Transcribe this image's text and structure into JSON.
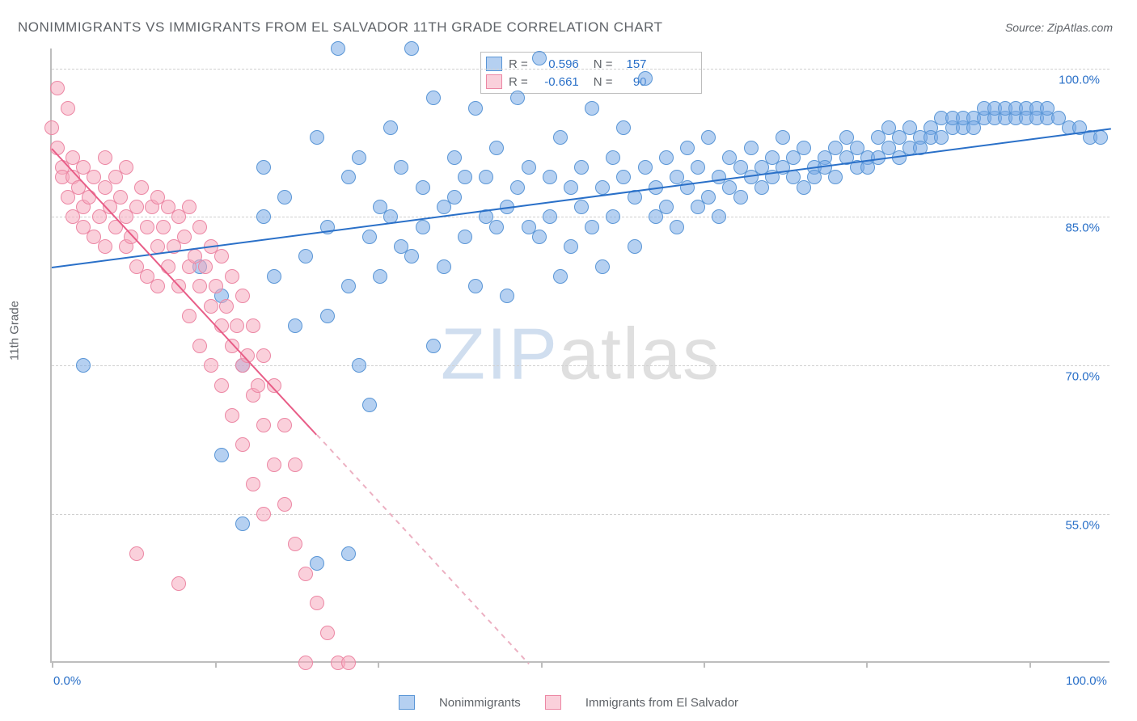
{
  "title": "NONIMMIGRANTS VS IMMIGRANTS FROM EL SALVADOR 11TH GRADE CORRELATION CHART",
  "source_label": "Source: ZipAtlas.com",
  "ylabel": "11th Grade",
  "watermark_a": "ZIP",
  "watermark_b": "atlas",
  "background_color": "#ffffff",
  "grid_color": "#d0d0d0",
  "axis_color": "#bdbdbd",
  "text_color": "#5f6368",
  "tick_label_color": "#2a70c8",
  "chart": {
    "type": "scatter",
    "xlim": [
      0,
      100
    ],
    "ylim": [
      40,
      102
    ],
    "x_ticks": [
      0,
      15.4,
      30.8,
      46.2,
      61.5,
      76.9,
      92.3
    ],
    "x_tick_labels": {
      "0": "0.0%",
      "100": "100.0%"
    },
    "y_gridlines": [
      55,
      70,
      85,
      100
    ],
    "y_tick_labels": {
      "55": "55.0%",
      "70": "70.0%",
      "85": "85.0%",
      "100": "100.0%"
    },
    "series": [
      {
        "name": "Nonimmigrants",
        "color_fill": "rgba(120,170,230,0.55)",
        "color_stroke": "#5a96d6",
        "R": "0.596",
        "N": "157",
        "trend": {
          "x1": 0,
          "y1": 80,
          "x2": 100,
          "y2": 94,
          "color": "#2a70c8",
          "dash_after_x": null
        },
        "marker_radius": 9,
        "points": [
          [
            3,
            70
          ],
          [
            14,
            80
          ],
          [
            16,
            77
          ],
          [
            18,
            70
          ],
          [
            16,
            61
          ],
          [
            20,
            85
          ],
          [
            20,
            90
          ],
          [
            21,
            79
          ],
          [
            22,
            87
          ],
          [
            23,
            74
          ],
          [
            24,
            81
          ],
          [
            25,
            93
          ],
          [
            26,
            84
          ],
          [
            25,
            50
          ],
          [
            26,
            75
          ],
          [
            27,
            102
          ],
          [
            28,
            78
          ],
          [
            28,
            89
          ],
          [
            29,
            91
          ],
          [
            29,
            70
          ],
          [
            30,
            83
          ],
          [
            30,
            66
          ],
          [
            31,
            86
          ],
          [
            31,
            79
          ],
          [
            32,
            94
          ],
          [
            32,
            85
          ],
          [
            33,
            90
          ],
          [
            33,
            82
          ],
          [
            34,
            102
          ],
          [
            34,
            81
          ],
          [
            35,
            84
          ],
          [
            35,
            88
          ],
          [
            36,
            72
          ],
          [
            36,
            97
          ],
          [
            37,
            86
          ],
          [
            37,
            80
          ],
          [
            38,
            91
          ],
          [
            38,
            87
          ],
          [
            39,
            89
          ],
          [
            39,
            83
          ],
          [
            40,
            78
          ],
          [
            40,
            96
          ],
          [
            41,
            85
          ],
          [
            41,
            89
          ],
          [
            42,
            92
          ],
          [
            42,
            84
          ],
          [
            43,
            86
          ],
          [
            43,
            77
          ],
          [
            44,
            88
          ],
          [
            44,
            97
          ],
          [
            45,
            90
          ],
          [
            45,
            84
          ],
          [
            46,
            83
          ],
          [
            46,
            101
          ],
          [
            47,
            89
          ],
          [
            47,
            85
          ],
          [
            48,
            79
          ],
          [
            48,
            93
          ],
          [
            49,
            88
          ],
          [
            49,
            82
          ],
          [
            50,
            86
          ],
          [
            50,
            90
          ],
          [
            51,
            84
          ],
          [
            51,
            96
          ],
          [
            52,
            88
          ],
          [
            52,
            80
          ],
          [
            53,
            91
          ],
          [
            53,
            85
          ],
          [
            54,
            89
          ],
          [
            54,
            94
          ],
          [
            55,
            87
          ],
          [
            55,
            82
          ],
          [
            56,
            90
          ],
          [
            56,
            99
          ],
          [
            57,
            88
          ],
          [
            57,
            85
          ],
          [
            58,
            86
          ],
          [
            58,
            91
          ],
          [
            59,
            89
          ],
          [
            59,
            84
          ],
          [
            60,
            92
          ],
          [
            60,
            88
          ],
          [
            61,
            90
          ],
          [
            61,
            86
          ],
          [
            62,
            87
          ],
          [
            62,
            93
          ],
          [
            63,
            89
          ],
          [
            63,
            85
          ],
          [
            64,
            91
          ],
          [
            64,
            88
          ],
          [
            65,
            90
          ],
          [
            65,
            87
          ],
          [
            66,
            89
          ],
          [
            66,
            92
          ],
          [
            67,
            88
          ],
          [
            67,
            90
          ],
          [
            68,
            91
          ],
          [
            68,
            89
          ],
          [
            69,
            90
          ],
          [
            69,
            93
          ],
          [
            70,
            89
          ],
          [
            70,
            91
          ],
          [
            71,
            88
          ],
          [
            71,
            92
          ],
          [
            72,
            90
          ],
          [
            72,
            89
          ],
          [
            73,
            91
          ],
          [
            73,
            90
          ],
          [
            74,
            92
          ],
          [
            74,
            89
          ],
          [
            75,
            91
          ],
          [
            75,
            93
          ],
          [
            76,
            90
          ],
          [
            76,
            92
          ],
          [
            77,
            91
          ],
          [
            77,
            90
          ],
          [
            78,
            93
          ],
          [
            78,
            91
          ],
          [
            79,
            92
          ],
          [
            79,
            94
          ],
          [
            80,
            91
          ],
          [
            80,
            93
          ],
          [
            81,
            92
          ],
          [
            81,
            94
          ],
          [
            82,
            93
          ],
          [
            82,
            92
          ],
          [
            83,
            94
          ],
          [
            83,
            93
          ],
          [
            84,
            95
          ],
          [
            84,
            93
          ],
          [
            85,
            94
          ],
          [
            85,
            95
          ],
          [
            86,
            94
          ],
          [
            86,
            95
          ],
          [
            87,
            95
          ],
          [
            87,
            94
          ],
          [
            88,
            95
          ],
          [
            88,
            96
          ],
          [
            89,
            95
          ],
          [
            89,
            96
          ],
          [
            90,
            95
          ],
          [
            90,
            96
          ],
          [
            91,
            95
          ],
          [
            91,
            96
          ],
          [
            92,
            96
          ],
          [
            92,
            95
          ],
          [
            93,
            96
          ],
          [
            93,
            95
          ],
          [
            94,
            95
          ],
          [
            94,
            96
          ],
          [
            95,
            95
          ],
          [
            96,
            94
          ],
          [
            97,
            94
          ],
          [
            98,
            93
          ],
          [
            99,
            93
          ],
          [
            28,
            51
          ],
          [
            18,
            54
          ]
        ]
      },
      {
        "name": "Immigrants from El Salvador",
        "color_fill": "rgba(245,170,190,0.55)",
        "color_stroke": "#ec87a4",
        "R": "-0.661",
        "N": "90",
        "trend": {
          "x1": 0,
          "y1": 92,
          "x2": 45,
          "y2": 40,
          "color": "#e85d87",
          "dash_after_x": 25
        },
        "marker_radius": 9,
        "points": [
          [
            0,
            94
          ],
          [
            0.5,
            92
          ],
          [
            0.5,
            98
          ],
          [
            1,
            90
          ],
          [
            1,
            89
          ],
          [
            1.5,
            96
          ],
          [
            1.5,
            87
          ],
          [
            2,
            91
          ],
          [
            2,
            85
          ],
          [
            2,
            89
          ],
          [
            2.5,
            88
          ],
          [
            3,
            86
          ],
          [
            3,
            90
          ],
          [
            3,
            84
          ],
          [
            3.5,
            87
          ],
          [
            4,
            89
          ],
          [
            4,
            83
          ],
          [
            4.5,
            85
          ],
          [
            5,
            88
          ],
          [
            5,
            82
          ],
          [
            5,
            91
          ],
          [
            5.5,
            86
          ],
          [
            6,
            84
          ],
          [
            6,
            89
          ],
          [
            6.5,
            87
          ],
          [
            7,
            85
          ],
          [
            7,
            82
          ],
          [
            7,
            90
          ],
          [
            7.5,
            83
          ],
          [
            8,
            86
          ],
          [
            8,
            80
          ],
          [
            8.5,
            88
          ],
          [
            9,
            84
          ],
          [
            9,
            79
          ],
          [
            9.5,
            86
          ],
          [
            10,
            82
          ],
          [
            10,
            87
          ],
          [
            10,
            78
          ],
          [
            10.5,
            84
          ],
          [
            11,
            80
          ],
          [
            11,
            86
          ],
          [
            11.5,
            82
          ],
          [
            12,
            85
          ],
          [
            12,
            78
          ],
          [
            12.5,
            83
          ],
          [
            13,
            80
          ],
          [
            13,
            86
          ],
          [
            13,
            75
          ],
          [
            13.5,
            81
          ],
          [
            14,
            78
          ],
          [
            14,
            84
          ],
          [
            14,
            72
          ],
          [
            14.5,
            80
          ],
          [
            15,
            76
          ],
          [
            15,
            82
          ],
          [
            15,
            70
          ],
          [
            15.5,
            78
          ],
          [
            16,
            74
          ],
          [
            16,
            81
          ],
          [
            16,
            68
          ],
          [
            16.5,
            76
          ],
          [
            17,
            72
          ],
          [
            17,
            79
          ],
          [
            17,
            65
          ],
          [
            17.5,
            74
          ],
          [
            18,
            70
          ],
          [
            18,
            77
          ],
          [
            18,
            62
          ],
          [
            18.5,
            71
          ],
          [
            19,
            67
          ],
          [
            19,
            74
          ],
          [
            19,
            58
          ],
          [
            19.5,
            68
          ],
          [
            20,
            64
          ],
          [
            20,
            71
          ],
          [
            20,
            55
          ],
          [
            21,
            60
          ],
          [
            21,
            68
          ],
          [
            22,
            56
          ],
          [
            22,
            64
          ],
          [
            23,
            52
          ],
          [
            23,
            60
          ],
          [
            24,
            49
          ],
          [
            25,
            46
          ],
          [
            26,
            43
          ],
          [
            12,
            48
          ],
          [
            8,
            51
          ],
          [
            27,
            40
          ],
          [
            28,
            40
          ],
          [
            24,
            40
          ]
        ]
      }
    ]
  },
  "legend": {
    "series1_label": "Nonimmigrants",
    "series2_label": "Immigrants from El Salvador"
  },
  "stats_labels": {
    "R": "R =",
    "N": "N ="
  }
}
